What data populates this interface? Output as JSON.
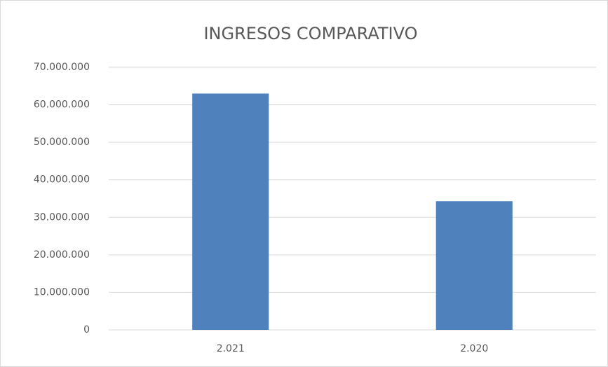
{
  "chart_data": {
    "type": "bar",
    "title": "INGRESOS COMPARATIVO",
    "categories": [
      "2.021",
      "2.020"
    ],
    "values": [
      63000000,
      34300000
    ],
    "color": "#4f81bd",
    "ylim": [
      0,
      70000000
    ],
    "yticks": [
      0,
      {
        "value": 10000000,
        "label": "10.000.000"
      },
      {
        "value": 20000000,
        "label": "20.000.000"
      },
      {
        "value": 30000000,
        "label": "30.000.000"
      },
      {
        "value": 40000000,
        "label": "40.000.000"
      },
      {
        "value": 50000000,
        "label": "50.000.000"
      },
      {
        "value": 60000000,
        "label": "60.000.000"
      },
      {
        "value": 70000000,
        "label": "70.000.000"
      }
    ],
    "grid": true
  }
}
